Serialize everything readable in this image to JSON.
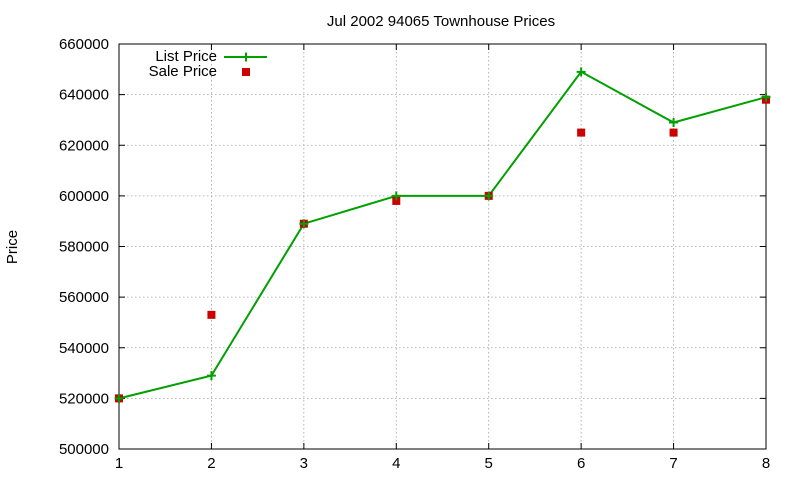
{
  "chart_data": {
    "type": "line",
    "title": "Jul 2002 94065 Townhouse Prices",
    "xlabel": "",
    "ylabel": "Price",
    "xlim": [
      1,
      8
    ],
    "ylim": [
      500000,
      660000
    ],
    "x_ticks": [
      "1",
      "2",
      "3",
      "4",
      "5",
      "6",
      "7",
      "8"
    ],
    "y_ticks": [
      "500000",
      "520000",
      "540000",
      "560000",
      "580000",
      "600000",
      "620000",
      "640000",
      "660000"
    ],
    "grid": true,
    "legend_position": "top-left",
    "x": [
      1,
      2,
      3,
      4,
      5,
      6,
      7,
      8
    ],
    "series": [
      {
        "name": "List Price",
        "style": "line-with-plus-markers",
        "color": "#00a000",
        "values": [
          520000,
          529000,
          589000,
          600000,
          600000,
          649000,
          629000,
          639000
        ]
      },
      {
        "name": "Sale Price",
        "style": "square-markers",
        "color": "#cc0000",
        "values": [
          520000,
          553000,
          589000,
          598000,
          600000,
          625000,
          625000,
          638000
        ]
      }
    ]
  }
}
